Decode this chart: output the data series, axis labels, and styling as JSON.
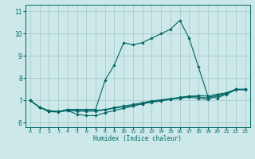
{
  "background_color": "#cce8e8",
  "grid_color": "#aacccc",
  "line_color": "#006666",
  "xlabel": "Humidex (Indice chaleur)",
  "xlim": [
    -0.5,
    23.5
  ],
  "ylim": [
    5.8,
    11.3
  ],
  "xticks": [
    0,
    1,
    2,
    3,
    4,
    5,
    6,
    7,
    8,
    9,
    10,
    11,
    12,
    13,
    14,
    15,
    16,
    17,
    18,
    19,
    20,
    21,
    22,
    23
  ],
  "yticks": [
    6,
    7,
    8,
    9,
    10,
    11
  ],
  "curves": [
    {
      "x": [
        0,
        1,
        2,
        3,
        4,
        5,
        6,
        7,
        8,
        9,
        10,
        11,
        12,
        13,
        14,
        15,
        16,
        17,
        18,
        19,
        20,
        21,
        22,
        23
      ],
      "y": [
        7.0,
        6.7,
        6.5,
        6.5,
        6.6,
        6.6,
        6.6,
        6.6,
        7.9,
        8.6,
        9.6,
        9.5,
        9.6,
        9.8,
        10.0,
        10.2,
        10.6,
        9.8,
        8.5,
        7.2,
        7.1,
        7.3,
        7.5,
        7.5
      ]
    },
    {
      "x": [
        0,
        1,
        2,
        3,
        4,
        5,
        6,
        7,
        8,
        9,
        10,
        11,
        12,
        13,
        14,
        15,
        16,
        17,
        18,
        19,
        20,
        21,
        22,
        23
      ],
      "y": [
        7.0,
        6.7,
        6.55,
        6.5,
        6.55,
        6.55,
        6.55,
        6.55,
        6.6,
        6.65,
        6.72,
        6.78,
        6.85,
        6.92,
        6.98,
        7.05,
        7.12,
        7.18,
        7.22,
        7.2,
        7.28,
        7.35,
        7.5,
        7.5
      ]
    },
    {
      "x": [
        0,
        1,
        2,
        3,
        4,
        5,
        6,
        7,
        8,
        9,
        10,
        11,
        12,
        13,
        14,
        15,
        16,
        17,
        18,
        19,
        20,
        21,
        22,
        23
      ],
      "y": [
        7.0,
        6.7,
        6.5,
        6.48,
        6.55,
        6.38,
        6.32,
        6.32,
        6.45,
        6.55,
        6.65,
        6.75,
        6.85,
        6.95,
        7.0,
        7.05,
        7.1,
        7.15,
        7.1,
        7.05,
        7.2,
        7.28,
        7.48,
        7.48
      ]
    },
    {
      "x": [
        0,
        1,
        2,
        3,
        4,
        5,
        6,
        7,
        8,
        9,
        10,
        11,
        12,
        13,
        14,
        15,
        16,
        17,
        18,
        19,
        20,
        21,
        22,
        23
      ],
      "y": [
        7.0,
        6.7,
        6.52,
        6.5,
        6.57,
        6.52,
        6.52,
        6.52,
        6.58,
        6.68,
        6.75,
        6.82,
        6.9,
        6.98,
        7.03,
        7.08,
        7.14,
        7.2,
        7.16,
        7.12,
        7.25,
        7.32,
        7.5,
        7.5
      ]
    }
  ]
}
